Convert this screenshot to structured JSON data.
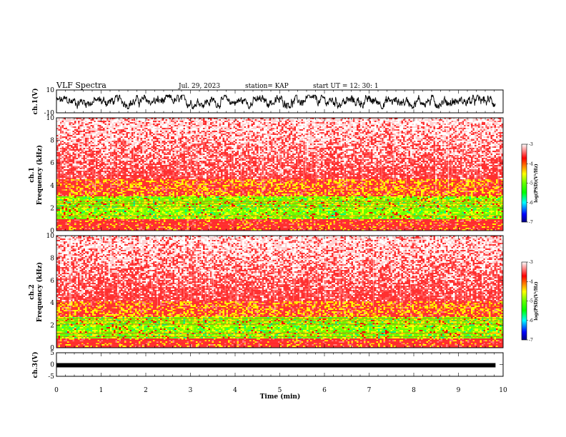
{
  "header": {
    "title": "VLF Spectra",
    "date": "Jul. 29, 2023",
    "station": "station= KAP",
    "start": "start UT = 12: 30: 1"
  },
  "chart_data": [
    {
      "type": "line",
      "panel": "ch1-waveform",
      "ylabel": "ch.1(V)",
      "ylim": [
        -10,
        10
      ],
      "ytick_labels": [
        "10",
        "-10"
      ],
      "xlim": [
        0,
        10
      ],
      "data_end_min": 9.83,
      "description_of_signal": "noisy waveform between about -6 and 5 V"
    },
    {
      "type": "heatmap",
      "panel": "ch1-spectrogram",
      "ylabel": "ch.1\nFrequency (kHz)",
      "ylabel_channel": "ch.1",
      "ylabel_freq": "Frequency (kHz)",
      "ylim": [
        0,
        10
      ],
      "ytick_labels": [
        "0",
        "2",
        "4",
        "6",
        "8",
        "10"
      ],
      "xlim": [
        0,
        10
      ],
      "bands_khz": [
        [
          0,
          1.0,
          "red"
        ],
        [
          1.0,
          3.0,
          "green-yellow"
        ],
        [
          3.0,
          4.5,
          "red-yellow"
        ],
        [
          4.5,
          10,
          "red-white"
        ]
      ],
      "colorbar": {
        "label": "log(PSD)(V²/Hz)",
        "range": [
          -7,
          -3
        ],
        "tick_labels": [
          "-3",
          "-4",
          "-5",
          "-6",
          "-7"
        ]
      }
    },
    {
      "type": "heatmap",
      "panel": "ch2-spectrogram",
      "ylabel": "ch.2\nFrequency (kHz)",
      "ylabel_channel": "ch.2",
      "ylabel_freq": "Frequency (kHz)",
      "ylim": [
        0,
        10
      ],
      "ytick_labels": [
        "0",
        "2",
        "4",
        "6",
        "8",
        "10"
      ],
      "xlim": [
        0,
        10
      ],
      "bands_khz": [
        [
          0,
          0.8,
          "red"
        ],
        [
          0.8,
          2.8,
          "green"
        ],
        [
          2.8,
          4.2,
          "red-yellow"
        ],
        [
          4.2,
          10,
          "red-white"
        ]
      ],
      "colorbar": {
        "label": "log(PSD)(V²/Hz)",
        "range": [
          -7,
          -3
        ],
        "tick_labels": [
          "-3",
          "-4",
          "-5",
          "-6",
          "-7"
        ]
      }
    },
    {
      "type": "line",
      "panel": "ch3-waveform",
      "ylabel": "ch.3(V)",
      "ylim": [
        -5,
        5
      ],
      "ytick_labels": [
        "5",
        "0",
        "-5"
      ],
      "xlim": [
        0,
        10
      ],
      "data_end_min": 9.83,
      "level_v": -0.3
    }
  ],
  "x_axis": {
    "label": "Time (min)",
    "tick_labels": [
      "0",
      "1",
      "2",
      "3",
      "4",
      "5",
      "6",
      "7",
      "8",
      "9",
      "10"
    ]
  },
  "colors": {
    "waveform": "#000000",
    "spec_red": "#ff0000",
    "spec_green": "#66ff00",
    "spec_yellow": "#ffff00",
    "spec_white": "#ffffff"
  }
}
